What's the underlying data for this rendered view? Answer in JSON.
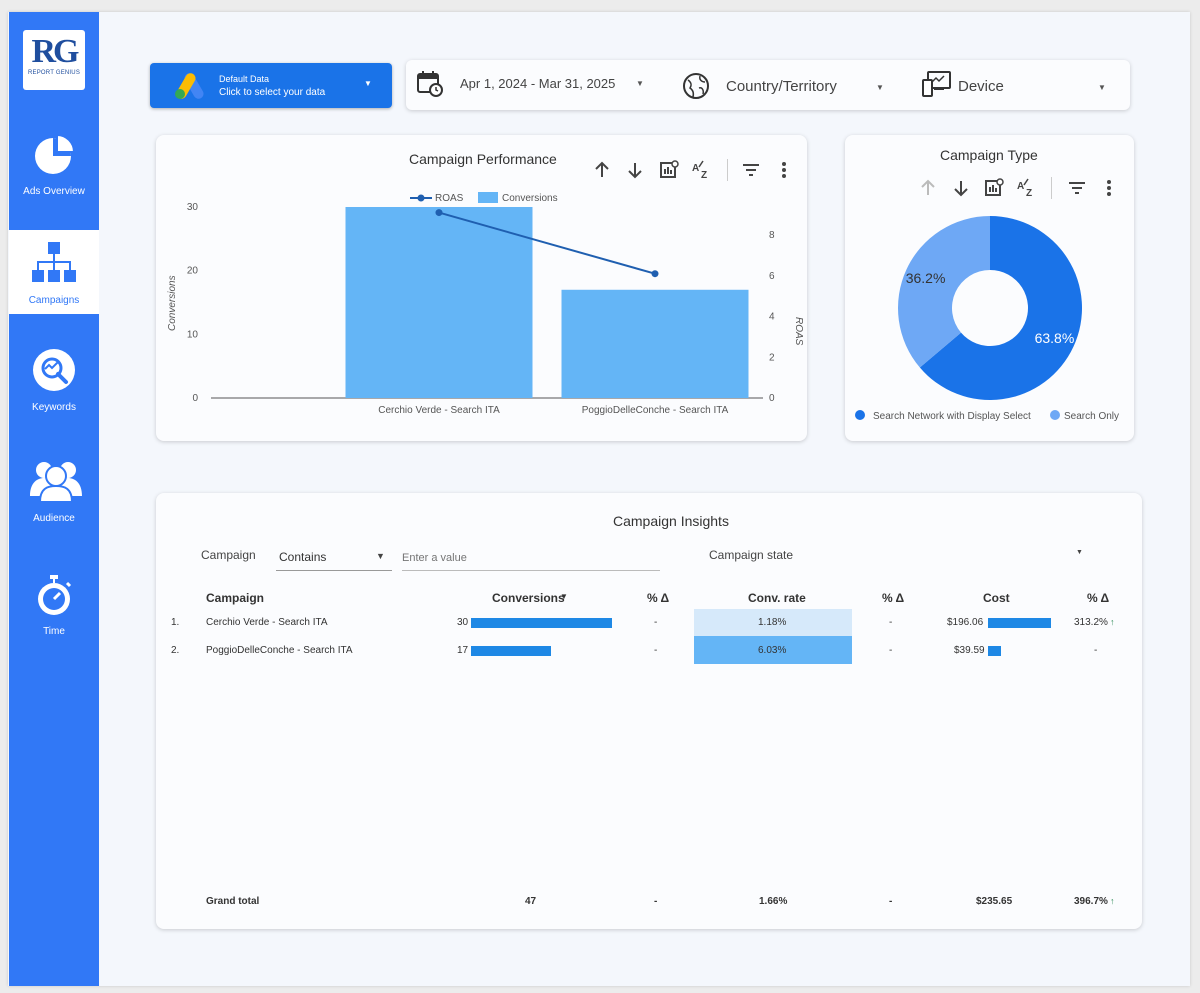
{
  "sidebar": {
    "logo": {
      "mark": "RG",
      "sub": "REPORT GENIUS"
    },
    "items": [
      {
        "label": "Ads Overview",
        "icon": "pie-chart-icon"
      },
      {
        "label": "Campaigns",
        "icon": "org-chart-icon",
        "active": true
      },
      {
        "label": "Keywords",
        "icon": "magnifier-icon"
      },
      {
        "label": "Audience",
        "icon": "users-icon"
      },
      {
        "label": "Time",
        "icon": "stopwatch-icon"
      }
    ]
  },
  "data_source": {
    "title": "Default Data",
    "subtitle": "Click to select your data",
    "icon": "google-ads-icon"
  },
  "filters": {
    "date_range": "Apr 1, 2024 - Mar 31, 2025",
    "country": "Country/Territory",
    "device": "Device"
  },
  "campaign_performance": {
    "title": "Campaign Performance",
    "chart_data": {
      "type": "bar",
      "categories": [
        "Cerchio Verde - Search ITA",
        "PoggioDelleConche - Search ITA"
      ],
      "series": [
        {
          "name": "Conversions",
          "type": "bar",
          "axis": "left",
          "values": [
            30,
            17
          ],
          "color": "#64b5f6"
        },
        {
          "name": "ROAS",
          "type": "line",
          "axis": "right",
          "values": [
            9.1,
            6.1
          ],
          "color": "#1f5fb0"
        }
      ],
      "ylabel": "Conversions",
      "y2label": "ROAS",
      "ylim": [
        0,
        30
      ],
      "y2lim": [
        0,
        8
      ],
      "yticks": [
        0,
        10,
        20,
        30
      ],
      "y2ticks": [
        0,
        2,
        4,
        6,
        8
      ],
      "legend": "top-center"
    }
  },
  "campaign_type": {
    "title": "Campaign Type",
    "chart_data": {
      "type": "pie",
      "labels": [
        "Search Network with Display Select",
        "Search Only"
      ],
      "values": [
        63.8,
        36.2
      ],
      "value_labels": [
        "63.8%",
        "36.2%"
      ],
      "colors": [
        "#1a73e8",
        "#6ea8f5"
      ],
      "donut": true,
      "legend": "bottom"
    }
  },
  "insights": {
    "title": "Campaign Insights",
    "filter_label": "Campaign",
    "filter_op": "Contains",
    "filter_placeholder": "Enter a value",
    "state_label": "Campaign state",
    "columns": {
      "campaign": "Campaign",
      "conversions": "Conversions",
      "pct1": "% Δ",
      "conv_rate": "Conv. rate",
      "pct2": "% Δ",
      "cost": "Cost",
      "pct3": "% Δ"
    },
    "rows": [
      {
        "idx": "1.",
        "campaign": "Cerchio Verde - Search ITA",
        "conversions": "30",
        "conv_bar": 30,
        "pct1": "-",
        "conv_rate": "1.18%",
        "pct2": "-",
        "cost": "$196.06",
        "cost_bar": 196.06,
        "pct3": "313.2%",
        "pct3_trend": "up"
      },
      {
        "idx": "2.",
        "campaign": "PoggioDelleConche - Search ITA",
        "conversions": "17",
        "conv_bar": 17,
        "pct1": "-",
        "conv_rate": "6.03%",
        "pct2": "-",
        "cost": "$39.59",
        "cost_bar": 39.59,
        "pct3": "-",
        "pct3_trend": ""
      }
    ],
    "total": {
      "label": "Grand total",
      "conversions": "47",
      "pct1": "-",
      "conv_rate": "1.66%",
      "pct2": "-",
      "cost": "$235.65",
      "pct3": "396.7%"
    }
  },
  "colors": {
    "sidebar": "#3178f6",
    "accent": "#1a73e8",
    "bar": "#64b5f6",
    "heat_low": "#d6e9fa",
    "heat_high": "#64b5f6"
  }
}
